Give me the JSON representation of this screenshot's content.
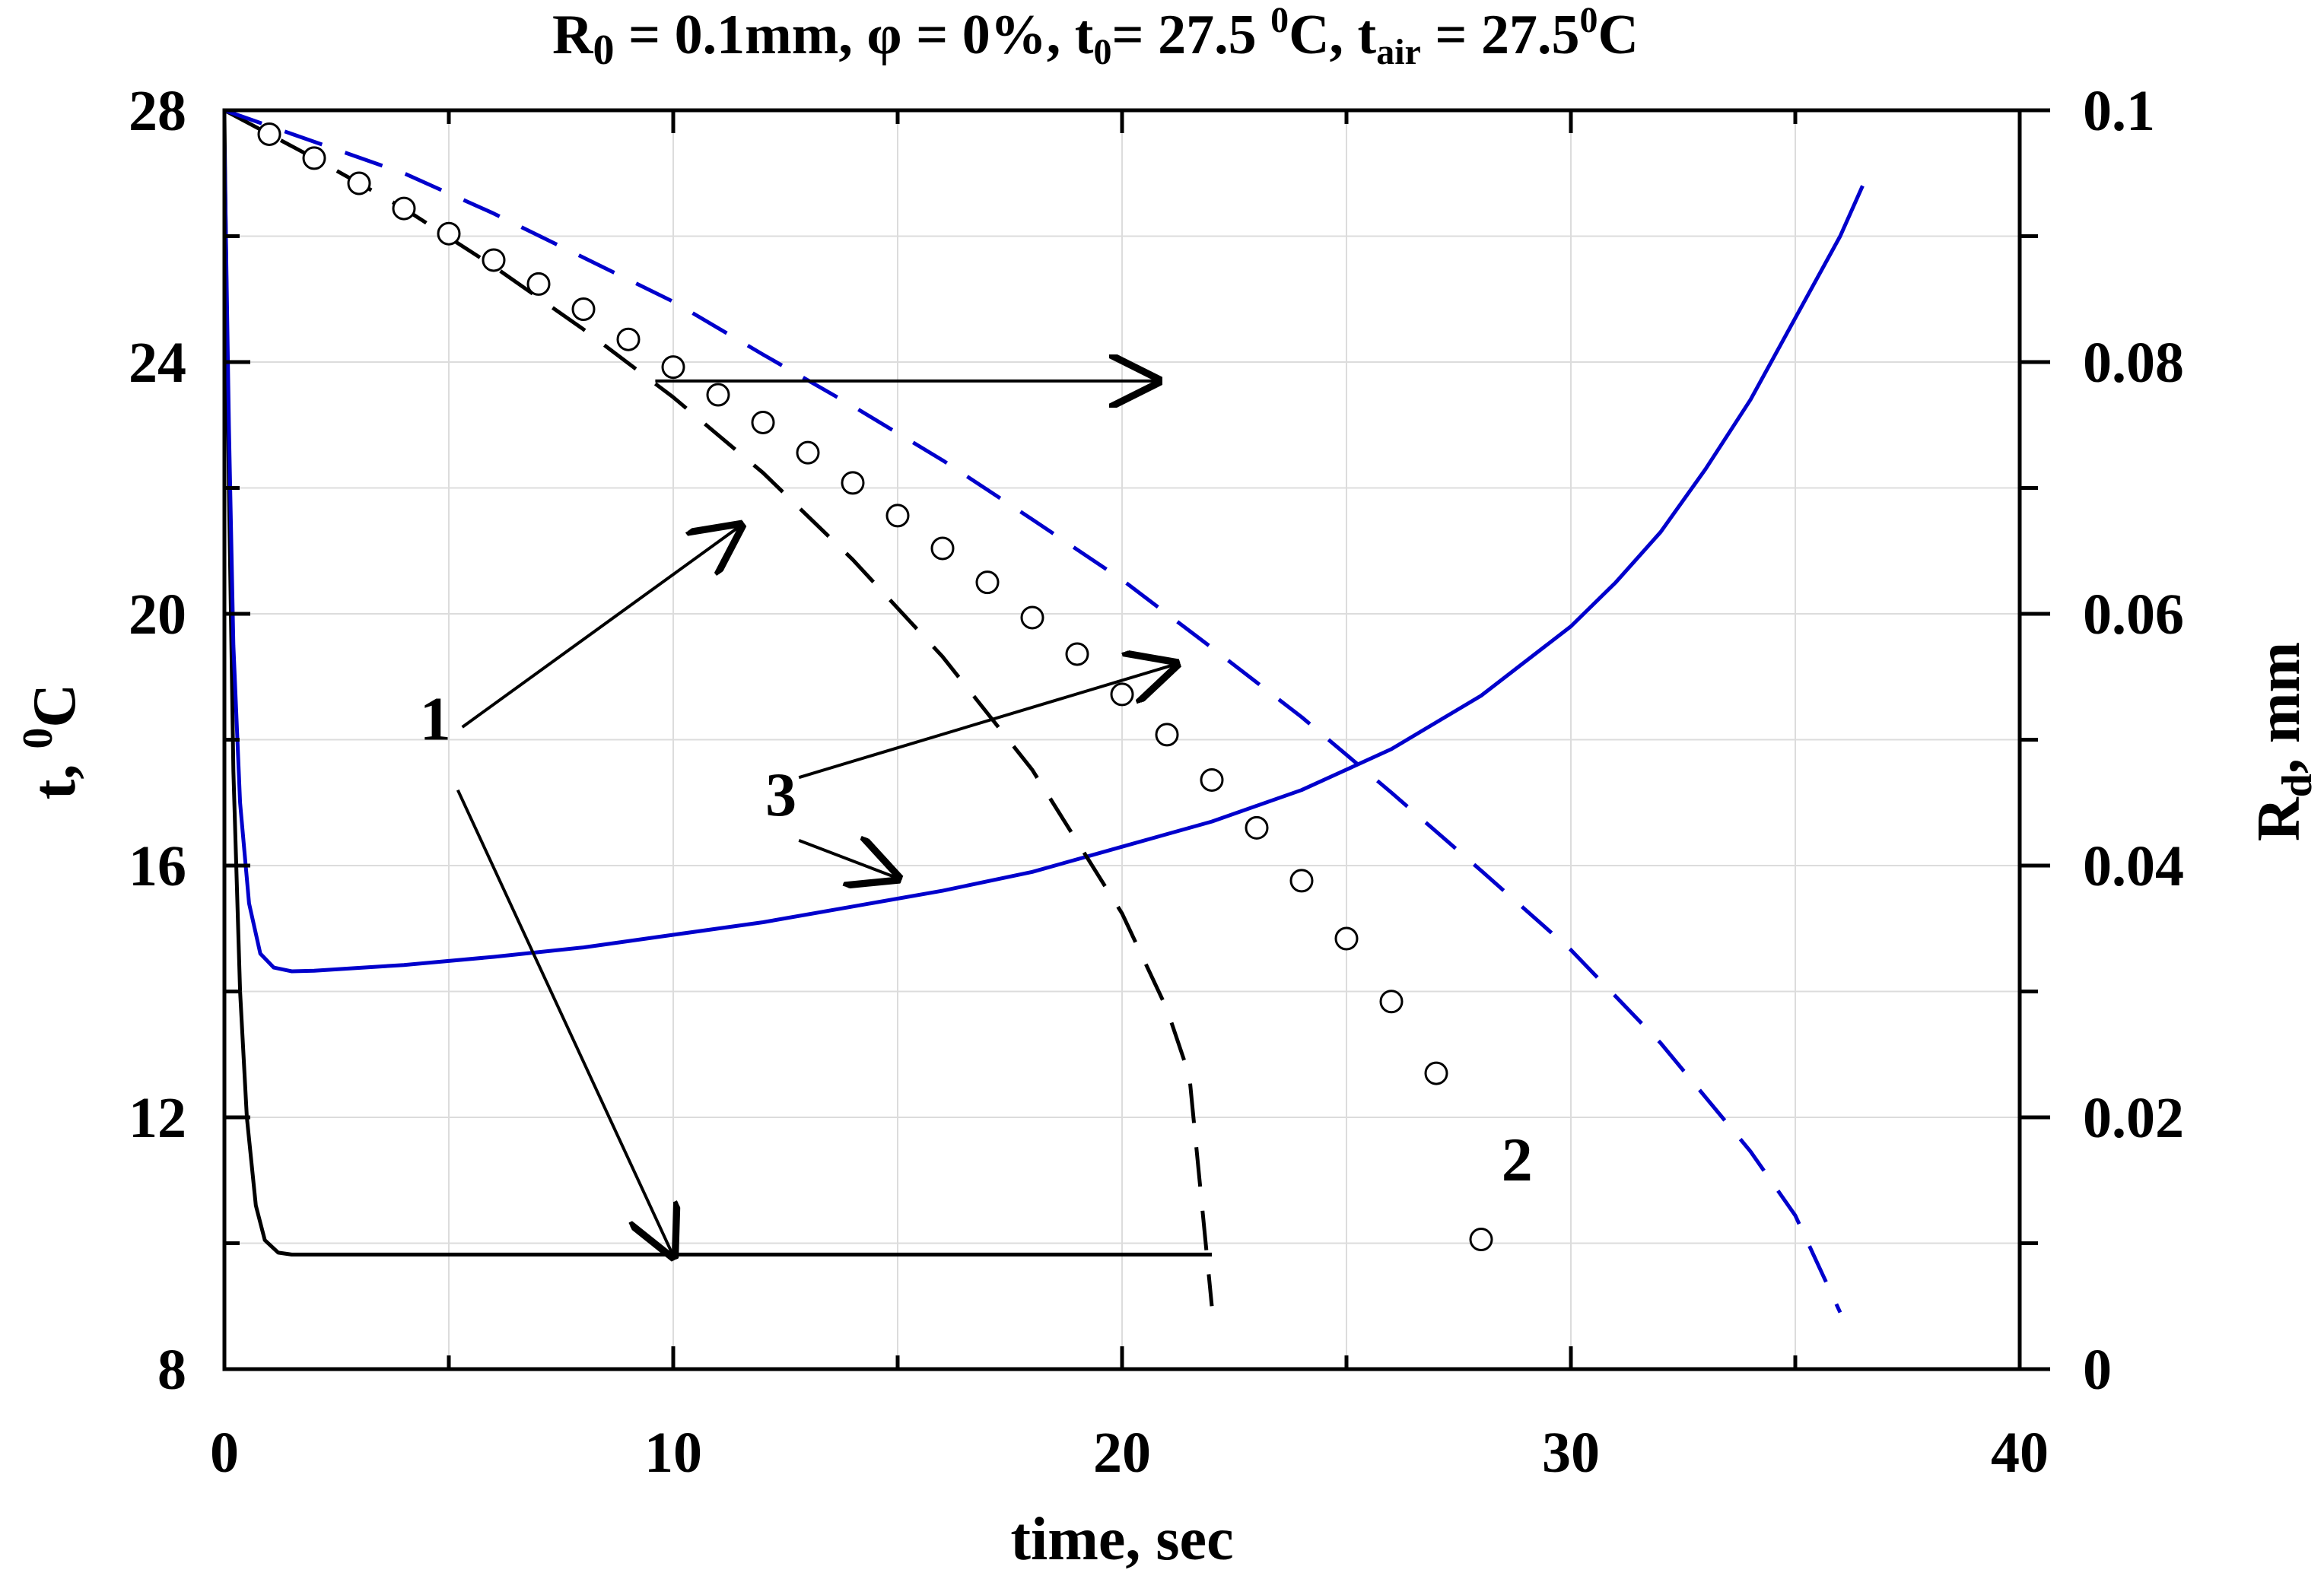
{
  "chart_data": {
    "type": "line",
    "title": {
      "r0_main": "R",
      "r0_sub": "0",
      "r0_value": " = 0.1mm, φ = 0%, t",
      "t0_sub": "0",
      "t0_value": "= 27.5 ",
      "t0_sup": "0",
      "t0_unit": "C, t",
      "tair_sub": "air",
      "tair_value": " = 27.5",
      "tair_sup": "0",
      "tair_unit": "C"
    },
    "xlabel": "time, sec",
    "ylabel_left": {
      "main": "t, ",
      "sup": "0",
      "unit": "C"
    },
    "ylabel_right": {
      "main": "R",
      "sub": "d",
      "unit": ", mm"
    },
    "xlim": [
      0,
      40
    ],
    "ylim_left": [
      8,
      28
    ],
    "ylim_right": [
      0,
      0.1
    ],
    "x_ticks": [
      "0",
      "10",
      "20",
      "30",
      "40"
    ],
    "y_left_ticks": [
      "8",
      "12",
      "16",
      "20",
      "24",
      "28"
    ],
    "y_right_ticks": [
      "0",
      "0.02",
      "0.04",
      "0.06",
      "0.08",
      "0.1"
    ],
    "grid": true,
    "colors": {
      "blue": "#0000cc",
      "black": "#000000",
      "grid": "#dcdcdc"
    },
    "series": [
      {
        "axis": "left",
        "style": "solid",
        "color": "#000000",
        "points": [
          [
            0,
            27.9
          ],
          [
            0.1,
            22
          ],
          [
            0.2,
            17.5
          ],
          [
            0.35,
            14
          ],
          [
            0.5,
            12
          ],
          [
            0.7,
            10.6
          ],
          [
            0.9,
            10.05
          ],
          [
            1.2,
            9.85
          ],
          [
            1.5,
            9.82
          ],
          [
            5,
            9.82
          ],
          [
            10,
            9.82
          ],
          [
            15,
            9.82
          ],
          [
            20,
            9.82
          ],
          [
            22,
            9.82
          ]
        ]
      },
      {
        "axis": "left",
        "style": "solid",
        "color": "#0000cc",
        "points": [
          [
            0,
            27.5
          ],
          [
            0.1,
            23
          ],
          [
            0.2,
            19.5
          ],
          [
            0.35,
            17
          ],
          [
            0.55,
            15.4
          ],
          [
            0.8,
            14.6
          ],
          [
            1.1,
            14.38
          ],
          [
            1.5,
            14.32
          ],
          [
            2,
            14.33
          ],
          [
            4,
            14.42
          ],
          [
            6,
            14.55
          ],
          [
            8,
            14.7
          ],
          [
            10,
            14.9
          ],
          [
            12,
            15.1
          ],
          [
            14,
            15.35
          ],
          [
            16,
            15.6
          ],
          [
            18,
            15.9
          ],
          [
            20,
            16.3
          ],
          [
            22,
            16.7
          ],
          [
            24,
            17.2
          ],
          [
            26,
            17.85
          ],
          [
            28,
            18.7
          ],
          [
            30,
            19.8
          ],
          [
            31,
            20.5
          ],
          [
            32,
            21.3
          ],
          [
            33,
            22.3
          ],
          [
            34,
            23.4
          ],
          [
            35,
            24.7
          ],
          [
            36,
            26
          ],
          [
            36.5,
            26.8
          ]
        ]
      },
      {
        "axis": "right",
        "style": "dashed",
        "color": "#000000",
        "points": [
          [
            0,
            0.1
          ],
          [
            2,
            0.0962
          ],
          [
            4,
            0.0922
          ],
          [
            6,
            0.0876
          ],
          [
            8,
            0.0826
          ],
          [
            10,
            0.0772
          ],
          [
            12,
            0.0712
          ],
          [
            14,
            0.0643
          ],
          [
            16,
            0.0566
          ],
          [
            18,
            0.0476
          ],
          [
            20,
            0.0362
          ],
          [
            21,
            0.0286
          ],
          [
            21.5,
            0.0233
          ],
          [
            22,
            0.005
          ]
        ]
      },
      {
        "axis": "right",
        "style": "dashed",
        "color": "#0000cc",
        "points": [
          [
            0,
            0.1
          ],
          [
            2,
            0.0975
          ],
          [
            4,
            0.095
          ],
          [
            6,
            0.0918
          ],
          [
            8,
            0.0883
          ],
          [
            10,
            0.0848
          ],
          [
            12,
            0.0806
          ],
          [
            14,
            0.0765
          ],
          [
            16,
            0.0722
          ],
          [
            18,
            0.0675
          ],
          [
            20,
            0.0627
          ],
          [
            22,
            0.0573
          ],
          [
            24,
            0.0518
          ],
          [
            26,
            0.0458
          ],
          [
            28,
            0.0396
          ],
          [
            30,
            0.0333
          ],
          [
            32,
            0.0259
          ],
          [
            34,
            0.0173
          ],
          [
            35,
            0.0122
          ],
          [
            36,
            0.0045
          ]
        ]
      },
      {
        "axis": "right",
        "style": "markers",
        "color": "#000000",
        "points": [
          [
            1,
            0.0981
          ],
          [
            2,
            0.0962
          ],
          [
            3,
            0.0942
          ],
          [
            4,
            0.0922
          ],
          [
            5,
            0.0902
          ],
          [
            6,
            0.0881
          ],
          [
            7,
            0.0862
          ],
          [
            8,
            0.0842
          ],
          [
            9,
            0.0818
          ],
          [
            10,
            0.0796
          ],
          [
            11,
            0.0774
          ],
          [
            12,
            0.0752
          ],
          [
            13,
            0.0728
          ],
          [
            14,
            0.0704
          ],
          [
            15,
            0.0678
          ],
          [
            16,
            0.0652
          ],
          [
            17,
            0.0625
          ],
          [
            18,
            0.0597
          ],
          [
            19,
            0.0568
          ],
          [
            20,
            0.0536
          ],
          [
            21,
            0.0504
          ],
          [
            22,
            0.0468
          ],
          [
            23,
            0.043
          ],
          [
            24,
            0.0388
          ],
          [
            25,
            0.0342
          ],
          [
            26,
            0.0292
          ],
          [
            27,
            0.0235
          ],
          [
            28,
            0.0103
          ]
        ]
      }
    ],
    "annotations": [
      {
        "label": "1",
        "at": [
          4.7,
          0.05
        ],
        "arrows": [
          [
            [
              5.3,
              0.051
            ],
            [
              11.5,
              0.067
            ]
          ],
          [
            [
              5.2,
              0.046
            ],
            [
              10,
              0.009
            ]
          ]
        ]
      },
      {
        "label": "2",
        "at": [
          28.8,
          0.015
        ],
        "arrows": []
      },
      {
        "label": "3",
        "at": [
          12.4,
          0.044
        ],
        "arrows": [
          [
            [
              12.8,
              0.047
            ],
            [
              21.2,
              0.056
            ]
          ],
          [
            [
              12.8,
              0.042
            ],
            [
              15.0,
              0.039
            ]
          ]
        ]
      }
    ],
    "horizontal_arrow": {
      "from": [
        9.6,
        0.0785
      ],
      "to": [
        20.8,
        0.0785
      ]
    }
  }
}
